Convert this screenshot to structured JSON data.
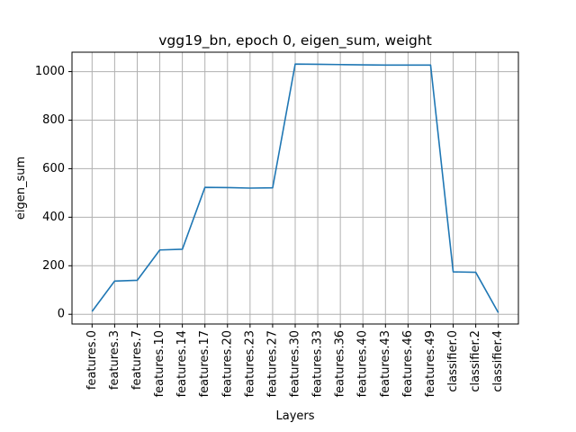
{
  "chart_data": {
    "type": "line",
    "title": "vgg19_bn, epoch 0, eigen_sum, weight",
    "xlabel": "Layers",
    "ylabel": "eigen_sum",
    "categories": [
      "features.0",
      "features.3",
      "features.7",
      "features.10",
      "features.14",
      "features.17",
      "features.20",
      "features.23",
      "features.27",
      "features.30",
      "features.33",
      "features.36",
      "features.40",
      "features.43",
      "features.46",
      "features.49",
      "classifier.0",
      "classifier.2",
      "classifier.4"
    ],
    "series": [
      {
        "name": "eigen_sum",
        "color": "#1f77b4",
        "values": [
          12,
          137,
          140,
          265,
          268,
          523,
          522,
          520,
          521,
          1031,
          1030,
          1029,
          1028,
          1027,
          1027,
          1027,
          175,
          173,
          7
        ]
      }
    ],
    "yticks": [
      0,
      200,
      400,
      600,
      800,
      1000
    ],
    "ylim": [
      -40,
      1080
    ],
    "grid": true,
    "legend": "none"
  }
}
